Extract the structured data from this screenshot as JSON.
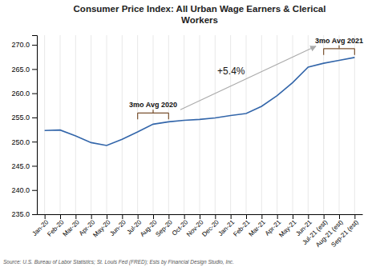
{
  "chart_data": {
    "type": "line",
    "title": "Consumer Price Index: All Urban Wage Earners & Clerical\nWorkers",
    "source": "Source: U.S. Bureau of Labor Statistics; St. Louis Fed (FRED); Ests by Financial Design Studio, Inc.",
    "categories": [
      "Jan-20",
      "Feb-20",
      "Mar-20",
      "Apr-20",
      "May-20",
      "Jun-20",
      "Jul-20",
      "Aug-20",
      "Sep-20",
      "Oct-20",
      "Nov-20",
      "Dec-20",
      "Jan-21",
      "Feb-21",
      "Mar-21",
      "Apr-21",
      "May-21",
      "Jun-21",
      "Jul-21 (est)",
      "Aug-21 (est)",
      "Sep-21 (est)"
    ],
    "values": [
      252.3,
      252.4,
      251.2,
      249.8,
      249.2,
      250.5,
      252.0,
      253.6,
      254.1,
      254.4,
      254.6,
      254.9,
      255.4,
      255.8,
      257.3,
      259.5,
      262.2,
      265.4,
      266.2,
      266.8,
      267.4
    ],
    "color": "#3366aa",
    "ylim": [
      235.0,
      272.0
    ],
    "yticks": [
      {
        "value": 235.0,
        "label": "235.0"
      },
      {
        "value": 240.0,
        "label": "240.0"
      },
      {
        "value": 245.0,
        "label": "245.0"
      },
      {
        "value": 250.0,
        "label": "250.0"
      },
      {
        "value": 255.0,
        "label": "255.0"
      },
      {
        "value": 260.0,
        "label": "260.0"
      },
      {
        "value": 265.0,
        "label": "265.0"
      },
      {
        "value": 270.0,
        "label": "270.0"
      }
    ],
    "grid": "x",
    "annotations": [
      {
        "text": "3mo Avg 2020",
        "shape": "bracket",
        "from": "Jul-20",
        "to": "Sep-20",
        "color": "#7a5230"
      },
      {
        "text": "3mo Avg 2021",
        "shape": "bracket",
        "from": "Jul-21 (est)",
        "to": "Sep-21 (est)",
        "color": "#7a5230"
      },
      {
        "text": "+5.4%",
        "shape": "arrow",
        "from": "Aug-20",
        "to": "Jul-21 (est)",
        "color": "#aaaaaa"
      }
    ]
  }
}
